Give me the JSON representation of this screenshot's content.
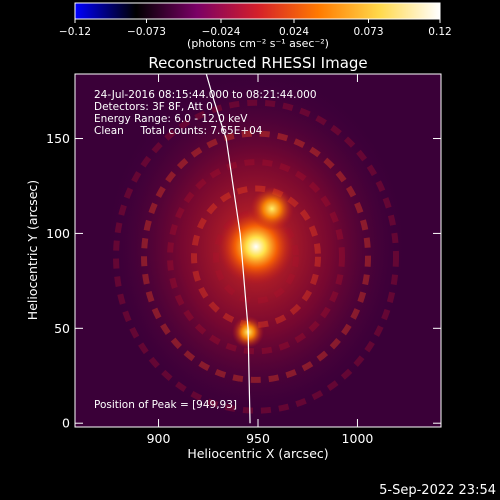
{
  "chart_data": {
    "type": "heatmap",
    "title": "Reconstructed RHESSI Image",
    "xlabel": "Heliocentric X (arcsec)",
    "ylabel": "Heliocentric Y (arcsec)",
    "xlim": [
      858,
      1042
    ],
    "ylim": [
      -2,
      184
    ],
    "x_ticks": [
      900,
      950,
      1000
    ],
    "y_ticks": [
      0,
      50,
      100,
      150
    ],
    "colorbar": {
      "range": [
        -0.12,
        0.12
      ],
      "tick_values": [
        -0.12,
        -0.073,
        -0.024,
        0.024,
        0.073,
        0.12
      ],
      "tick_labels": [
        "−0.12",
        "−0.073",
        "−0.024",
        "0.024",
        "0.073",
        "0.12"
      ],
      "unit_label": "(photons cm⁻² s⁻¹ asec⁻²)",
      "colormap": [
        "#0000ff",
        "#000000",
        "#7a0066",
        "#d41f2a",
        "#ff7a00",
        "#ffd84a",
        "#ffffff"
      ]
    },
    "annotations": [
      "24-Jul-2016 08:15:44.000 to 08:21:44.000",
      "Detectors: 3F 8F, Att 0",
      "Energy Range: 6.0 - 12.0 keV",
      "Clean     Total counts: 7.65E+04"
    ],
    "peak_label": "Position of Peak = [949,93]",
    "sources": [
      {
        "x": 949,
        "y": 93,
        "value": 0.12
      },
      {
        "x": 957,
        "y": 113,
        "value": 0.085
      },
      {
        "x": 945,
        "y": 48,
        "value": 0.07
      }
    ],
    "limb_points": [
      [
        924,
        184
      ],
      [
        934,
        150
      ],
      [
        941,
        100
      ],
      [
        945,
        50
      ],
      [
        946,
        0
      ]
    ],
    "timestamp": "5-Sep-2022 23:54"
  }
}
